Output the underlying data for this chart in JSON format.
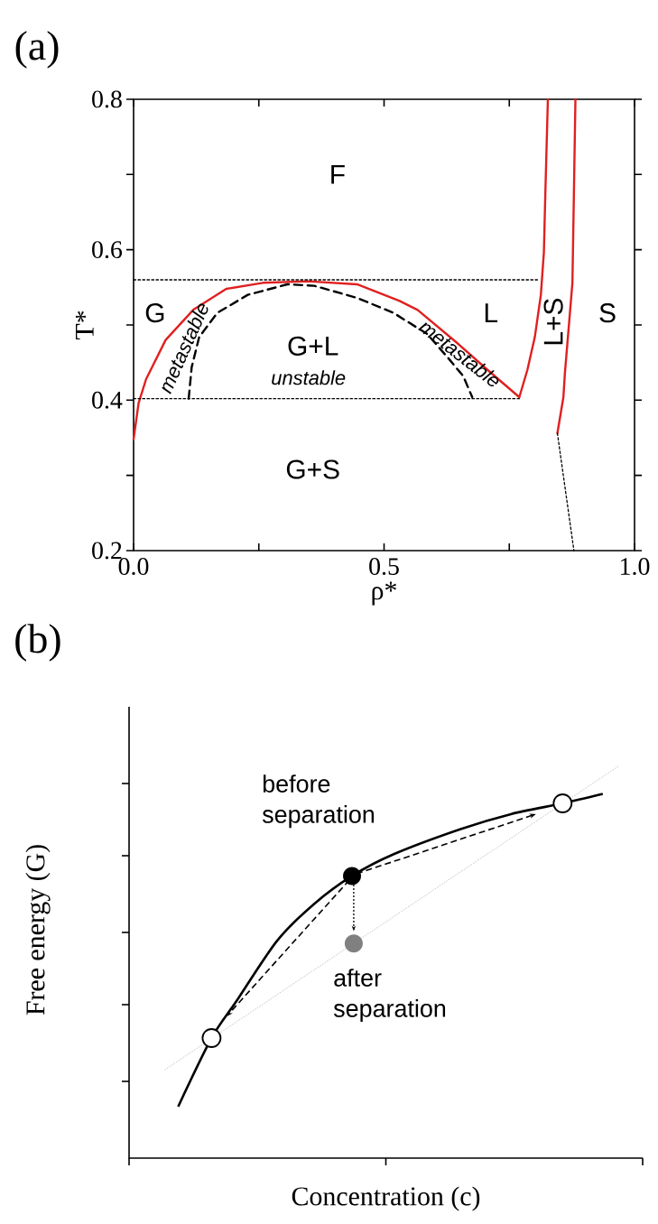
{
  "chart_data": [
    {
      "type": "line",
      "title": "(a)",
      "xlabel": "ρ*",
      "ylabel": "T*",
      "xlim": [
        0,
        1
      ],
      "ylim": [
        0.2,
        0.8
      ],
      "xticks": [
        {
          "value": 0,
          "label": "0.0"
        },
        {
          "value": 0.25,
          "label": null
        },
        {
          "value": 0.5,
          "label": "0.5"
        },
        {
          "value": 0.75,
          "label": null
        },
        {
          "value": 1,
          "label": "1.0"
        }
      ],
      "yticks": [
        {
          "value": 0.2,
          "label": "0.2"
        },
        {
          "value": 0.3,
          "label": null
        },
        {
          "value": 0.4,
          "label": "0.4"
        },
        {
          "value": 0.5,
          "label": null
        },
        {
          "value": 0.6,
          "label": "0.6"
        },
        {
          "value": 0.7,
          "label": null
        },
        {
          "value": 0.8,
          "label": "0.8"
        }
      ],
      "series": [
        {
          "color": "#e02020",
          "line_style": "solid",
          "x": [
            0.0,
            0.01,
            0.025,
            0.064,
            0.119,
            0.185,
            0.258,
            0.349,
            0.446,
            0.531,
            0.567,
            0.646,
            0.707,
            0.77
          ],
          "values": [
            0.348,
            0.396,
            0.428,
            0.48,
            0.52,
            0.548,
            0.556,
            0.558,
            0.554,
            0.532,
            0.52,
            0.476,
            0.44,
            0.404
          ]
        },
        {
          "color": "#e02020",
          "line_style": "solid",
          "x": [
            0.77,
            0.786,
            0.801,
            0.813,
            0.819,
            0.822,
            0.827
          ],
          "values": [
            0.404,
            0.44,
            0.484,
            0.54,
            0.596,
            0.676,
            0.8
          ]
        },
        {
          "color": "#e02020",
          "line_style": "solid",
          "x": [
            0.846,
            0.858,
            0.861,
            0.87,
            0.876,
            0.879,
            0.882
          ],
          "values": [
            0.356,
            0.404,
            0.436,
            0.508,
            0.556,
            0.676,
            0.8
          ]
        },
        {
          "color": "#000000",
          "line_style": "dotted",
          "x": [
            0.846,
            0.879
          ],
          "values": [
            0.356,
            0.2
          ]
        },
        {
          "color": "#000000",
          "line_style": "dashed",
          "x": [
            0.11,
            0.116,
            0.131,
            0.167,
            0.228,
            0.307,
            0.361,
            0.446,
            0.519,
            0.586,
            0.628,
            0.658,
            0.676
          ],
          "values": [
            0.402,
            0.444,
            0.484,
            0.516,
            0.54,
            0.554,
            0.552,
            0.536,
            0.516,
            0.488,
            0.456,
            0.432,
            0.404
          ]
        },
        {
          "color": "#000000",
          "line_style": "dotted",
          "x": [
            0.0,
            0.81
          ],
          "values": [
            0.56,
            0.56
          ]
        },
        {
          "color": "#000000",
          "line_style": "dotted",
          "x": [
            0.0,
            0.77
          ],
          "values": [
            0.402,
            0.402
          ]
        }
      ],
      "annotations": [
        "F",
        "G",
        "G+L",
        "unstable",
        "G+S",
        "metastable",
        "metastable",
        "L",
        "L+S",
        "S"
      ]
    },
    {
      "type": "other",
      "title": "(b)",
      "xlabel": "Concentration (c)",
      "ylabel": "Free energy (G)",
      "annotations": [
        "before separation",
        "after separation"
      ]
    }
  ]
}
